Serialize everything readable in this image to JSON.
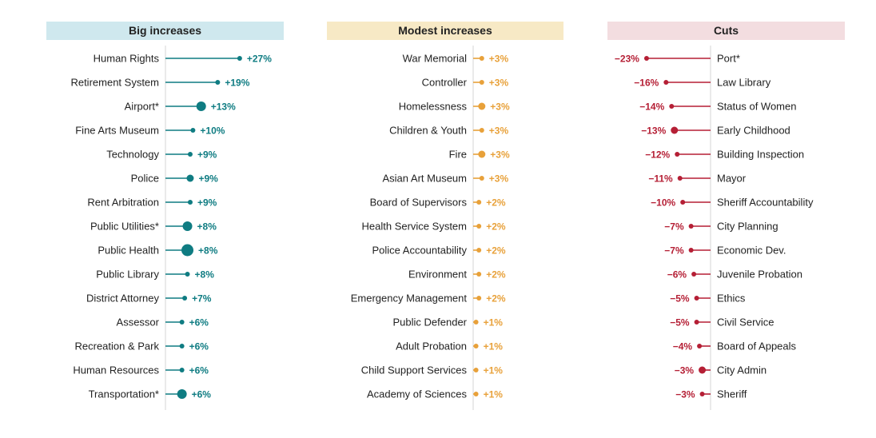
{
  "chart_data": [
    {
      "type": "lollipop",
      "title": "Big increases",
      "header_color": "#cfe8ee",
      "color": "#0f7c82",
      "direction": "right",
      "unit": "%",
      "items": [
        {
          "label": "Human Rights",
          "value": 27,
          "value_label": "+27%"
        },
        {
          "label": "Retirement System",
          "value": 19,
          "value_label": "+19%"
        },
        {
          "label": "Airport*",
          "value": 13,
          "value_label": "+13%",
          "dot_size": 3
        },
        {
          "label": "Fine Arts Museum",
          "value": 10,
          "value_label": "+10%"
        },
        {
          "label": "Technology",
          "value": 9,
          "value_label": "+9%"
        },
        {
          "label": "Police",
          "value": 9,
          "value_label": "+9%",
          "dot_size": 2
        },
        {
          "label": "Rent Arbitration",
          "value": 9,
          "value_label": "+9%"
        },
        {
          "label": "Public Utilities*",
          "value": 8,
          "value_label": "+8%",
          "dot_size": 3
        },
        {
          "label": "Public Health",
          "value": 8,
          "value_label": "+8%",
          "dot_size": 4
        },
        {
          "label": "Public Library",
          "value": 8,
          "value_label": "+8%"
        },
        {
          "label": "District Attorney",
          "value": 7,
          "value_label": "+7%"
        },
        {
          "label": "Assessor",
          "value": 6,
          "value_label": "+6%"
        },
        {
          "label": "Recreation & Park",
          "value": 6,
          "value_label": "+6%"
        },
        {
          "label": "Human Resources",
          "value": 6,
          "value_label": "+6%"
        },
        {
          "label": "Transportation*",
          "value": 6,
          "value_label": "+6%",
          "dot_size": 3
        }
      ]
    },
    {
      "type": "lollipop",
      "title": "Modest increases",
      "header_color": "#f7e9c5",
      "color": "#e8a13a",
      "direction": "right",
      "unit": "%",
      "items": [
        {
          "label": "War Memorial",
          "value": 3,
          "value_label": "+3%"
        },
        {
          "label": "Controller",
          "value": 3,
          "value_label": "+3%"
        },
        {
          "label": "Homelessness",
          "value": 3,
          "value_label": "+3%",
          "dot_size": 2
        },
        {
          "label": "Children & Youth",
          "value": 3,
          "value_label": "+3%"
        },
        {
          "label": "Fire",
          "value": 3,
          "value_label": "+3%",
          "dot_size": 2
        },
        {
          "label": "Asian Art Museum",
          "value": 3,
          "value_label": "+3%"
        },
        {
          "label": "Board of Supervisors",
          "value": 2,
          "value_label": "+2%"
        },
        {
          "label": "Health Service System",
          "value": 2,
          "value_label": "+2%"
        },
        {
          "label": "Police Accountability",
          "value": 2,
          "value_label": "+2%"
        },
        {
          "label": "Environment",
          "value": 2,
          "value_label": "+2%"
        },
        {
          "label": "Emergency Management",
          "value": 2,
          "value_label": "+2%"
        },
        {
          "label": "Public Defender",
          "value": 1,
          "value_label": "+1%"
        },
        {
          "label": "Adult Probation",
          "value": 1,
          "value_label": "+1%"
        },
        {
          "label": "Child Support Services",
          "value": 1,
          "value_label": "+1%"
        },
        {
          "label": "Academy of Sciences",
          "value": 1,
          "value_label": "+1%"
        }
      ]
    },
    {
      "type": "lollipop",
      "title": "Cuts",
      "header_color": "#f3dde0",
      "color": "#b51f35",
      "direction": "left",
      "unit": "%",
      "items": [
        {
          "label": "Port*",
          "value": -23,
          "value_label": "−23%"
        },
        {
          "label": "Law Library",
          "value": -16,
          "value_label": "−16%"
        },
        {
          "label": "Status of Women",
          "value": -14,
          "value_label": "−14%"
        },
        {
          "label": "Early Childhood",
          "value": -13,
          "value_label": "−13%",
          "dot_size": 2
        },
        {
          "label": "Building Inspection",
          "value": -12,
          "value_label": "−12%"
        },
        {
          "label": "Mayor",
          "value": -11,
          "value_label": "−11%"
        },
        {
          "label": "Sheriff Accountability",
          "value": -10,
          "value_label": "−10%"
        },
        {
          "label": "City Planning",
          "value": -7,
          "value_label": "−7%"
        },
        {
          "label": "Economic Dev.",
          "value": -7,
          "value_label": "−7%"
        },
        {
          "label": "Juvenile Probation",
          "value": -6,
          "value_label": "−6%"
        },
        {
          "label": "Ethics",
          "value": -5,
          "value_label": "−5%"
        },
        {
          "label": "Civil Service",
          "value": -5,
          "value_label": "−5%"
        },
        {
          "label": "Board of Appeals",
          "value": -4,
          "value_label": "−4%"
        },
        {
          "label": "City Admin",
          "value": -3,
          "value_label": "−3%",
          "dot_size": 2
        },
        {
          "label": "Sheriff",
          "value": -3,
          "value_label": "−3%"
        }
      ]
    }
  ]
}
